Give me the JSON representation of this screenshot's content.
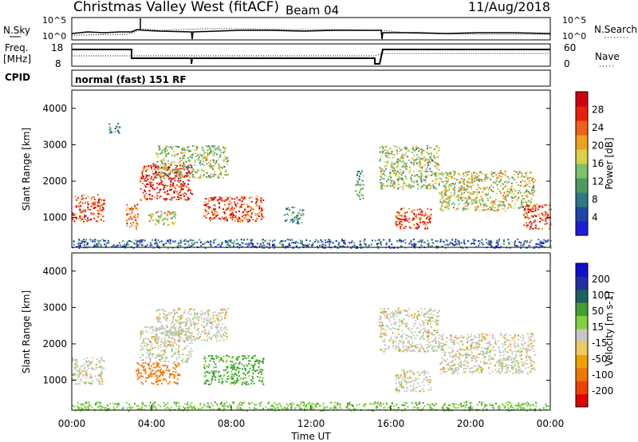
{
  "header": {
    "title": "Christmas Valley West (fitACF)",
    "beam": "Beam 04",
    "date": "11/Aug/2018"
  },
  "aux_panels": {
    "nsky_label": "N.Sky",
    "nsearch_label": "N.Search",
    "noise_ticks": [
      "10^5",
      "10^0"
    ],
    "freq_label": "Freq.",
    "freq_unit": "[MHz]",
    "freq_ticks": [
      "18",
      "8"
    ],
    "nave_label": "Nave",
    "nave_ticks": [
      "60",
      "0"
    ],
    "cpid_label": "CPID",
    "cpid_text": "normal (fast) 151 RF"
  },
  "chart_data": [
    {
      "type": "heatmap",
      "parameter": "power",
      "ylabel": "Slant Range [km]",
      "y_ticks": [
        1000,
        2000,
        3000,
        4000
      ],
      "ylim": [
        180,
        4500
      ],
      "colorbar": {
        "label": "Power [dB]",
        "ticks": [
          4,
          8,
          12,
          16,
          20,
          24,
          28
        ],
        "range": [
          0,
          30
        ],
        "colors": [
          "#1d1dd8",
          "#2244aa",
          "#2d7a82",
          "#4f9a62",
          "#7fc06a",
          "#d9d24a",
          "#f0a020",
          "#f06018",
          "#e82010",
          "#d00010"
        ]
      },
      "echo_regions": [
        {
          "t": [
            0.0,
            1.6
          ],
          "r": [
            900,
            1650
          ],
          "level": 24
        },
        {
          "t": [
            2.7,
            3.3
          ],
          "r": [
            700,
            1400
          ],
          "level": 22
        },
        {
          "t": [
            3.4,
            6.0
          ],
          "r": [
            1500,
            2500
          ],
          "level": 26
        },
        {
          "t": [
            4.2,
            7.8
          ],
          "r": [
            2100,
            3000
          ],
          "level": 14
        },
        {
          "t": [
            3.8,
            5.2
          ],
          "r": [
            800,
            1200
          ],
          "level": 16
        },
        {
          "t": [
            6.6,
            9.6
          ],
          "r": [
            900,
            1600
          ],
          "level": 24
        },
        {
          "t": [
            1.8,
            2.4
          ],
          "r": [
            3300,
            3600
          ],
          "level": 8
        },
        {
          "t": [
            10.6,
            11.6
          ],
          "r": [
            850,
            1300
          ],
          "level": 10
        },
        {
          "t": [
            14.2,
            14.6
          ],
          "r": [
            1500,
            2300
          ],
          "level": 10
        },
        {
          "t": [
            15.4,
            18.4
          ],
          "r": [
            1800,
            3000
          ],
          "level": 14
        },
        {
          "t": [
            16.2,
            18.0
          ],
          "r": [
            700,
            1300
          ],
          "level": 24
        },
        {
          "t": [
            18.4,
            23.2
          ],
          "r": [
            1200,
            2300
          ],
          "level": 16
        },
        {
          "t": [
            22.6,
            24.0
          ],
          "r": [
            700,
            1400
          ],
          "level": 24
        },
        {
          "t": [
            0.0,
            24.0
          ],
          "r": [
            180,
            420
          ],
          "level": 6
        }
      ]
    },
    {
      "type": "heatmap",
      "parameter": "velocity",
      "ylabel": "Slant Range [km]",
      "xlabel": "Time UT",
      "x_ticks": [
        "00:00",
        "04:00",
        "08:00",
        "12:00",
        "16:00",
        "20:00",
        "00:00"
      ],
      "y_ticks": [
        1000,
        2000,
        3000,
        4000
      ],
      "ylim": [
        180,
        4500
      ],
      "colorbar": {
        "label": "Velocity [m s-1]",
        "ticks": [
          -200,
          -100,
          -50,
          -15,
          15,
          50,
          100,
          200
        ],
        "colors": [
          "#e00000",
          "#f04000",
          "#f07800",
          "#f0a000",
          "#f0c860",
          "#c8c8c0",
          "#80d040",
          "#40a030",
          "#206060",
          "#2030a0",
          "#1010d0"
        ]
      },
      "echo_regions": [
        {
          "t": [
            0.0,
            1.6
          ],
          "r": [
            900,
            1650
          ],
          "v": 0
        },
        {
          "t": [
            3.4,
            6.0
          ],
          "r": [
            1500,
            2500
          ],
          "v": 0
        },
        {
          "t": [
            4.2,
            7.8
          ],
          "r": [
            2100,
            3000
          ],
          "v": 0
        },
        {
          "t": [
            3.2,
            5.4
          ],
          "r": [
            900,
            1500
          ],
          "v": -70
        },
        {
          "t": [
            6.6,
            9.6
          ],
          "r": [
            900,
            1700
          ],
          "v": 60
        },
        {
          "t": [
            15.4,
            18.4
          ],
          "r": [
            1800,
            3000
          ],
          "v": 0
        },
        {
          "t": [
            16.2,
            18.0
          ],
          "r": [
            700,
            1300
          ],
          "v": 0
        },
        {
          "t": [
            18.4,
            23.2
          ],
          "r": [
            1200,
            2300
          ],
          "v": 0
        },
        {
          "t": [
            0.0,
            24.0
          ],
          "r": [
            180,
            420
          ],
          "v": 40
        }
      ]
    }
  ],
  "footer": {
    "time_label": "Time UT"
  }
}
